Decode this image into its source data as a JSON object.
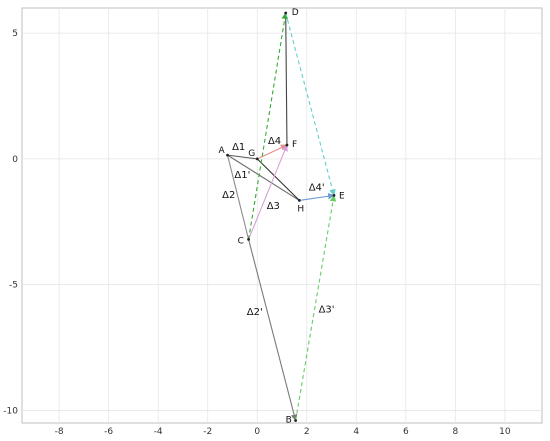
{
  "chart_data": {
    "type": "vector-diagram",
    "xlim": [
      -9.5,
      11.5
    ],
    "ylim": [
      -10.5,
      6
    ],
    "grid": true,
    "x_ticks": [
      -8,
      -6,
      -4,
      -2,
      0,
      2,
      4,
      6,
      8,
      10
    ],
    "y_ticks": [
      5,
      0,
      -5,
      -10
    ],
    "points": [
      {
        "label": "A",
        "x": -1.2,
        "y": 0.15
      },
      {
        "label": "G",
        "x": 0.0,
        "y": 0.0
      },
      {
        "label": "F",
        "x": 1.2,
        "y": 0.55
      },
      {
        "label": "H",
        "x": 1.7,
        "y": -1.65
      },
      {
        "label": "E",
        "x": 3.1,
        "y": -1.45
      },
      {
        "label": "C",
        "x": -0.35,
        "y": -3.2
      },
      {
        "label": "D",
        "x": 1.15,
        "y": 5.8
      },
      {
        "label": "B",
        "x": 1.55,
        "y": -10.4
      }
    ],
    "segments": [
      {
        "from": "A",
        "to": "C",
        "color": "#8c8c8c",
        "dash": "solid",
        "arrow": false
      },
      {
        "from": "C",
        "to": "B",
        "color": "#7a7a7a",
        "dash": "solid",
        "arrow": true
      },
      {
        "from": "A",
        "to": "G",
        "color": "#555555",
        "dash": "solid",
        "arrow": false
      },
      {
        "from": "G",
        "to": "F",
        "color": "#e58a8a",
        "dash": "solid",
        "arrow": true
      },
      {
        "from": "A",
        "to": "H",
        "color": "#6f6f6f",
        "dash": "solid",
        "arrow": false
      },
      {
        "from": "G",
        "to": "H",
        "color": "#333333",
        "dash": "solid",
        "arrow": false
      },
      {
        "from": "H",
        "to": "E",
        "color": "#6b9bd1",
        "dash": "solid",
        "arrow": true
      },
      {
        "from": "C",
        "to": "F",
        "color": "#d8a0d8",
        "dash": "solid",
        "arrow": true
      },
      {
        "from": "F",
        "to": "D",
        "color": "#444444",
        "dash": "solid",
        "arrow": false
      },
      {
        "from": "C",
        "to": "D",
        "color": "#33aa33",
        "dash": "dashed",
        "arrow": true
      },
      {
        "from": "D",
        "to": "E",
        "color": "#66cccc",
        "dash": "dashed",
        "arrow": true
      },
      {
        "from": "B",
        "to": "E",
        "color": "#66cc66",
        "dash": "dashed",
        "arrow": true
      }
    ],
    "segment_labels": [
      {
        "text": "Δ1",
        "x": -0.75,
        "y": 0.35
      },
      {
        "text": "Δ4",
        "x": 0.7,
        "y": 0.6
      },
      {
        "text": "Δ1'",
        "x": -0.6,
        "y": -0.75
      },
      {
        "text": "Δ2",
        "x": -1.15,
        "y": -1.55
      },
      {
        "text": "Δ3",
        "x": 0.65,
        "y": -2.0
      },
      {
        "text": "Δ4'",
        "x": 2.4,
        "y": -1.25
      },
      {
        "text": "Δ2'",
        "x": -0.1,
        "y": -6.2
      },
      {
        "text": "Δ3'",
        "x": 2.8,
        "y": -6.1
      }
    ]
  }
}
